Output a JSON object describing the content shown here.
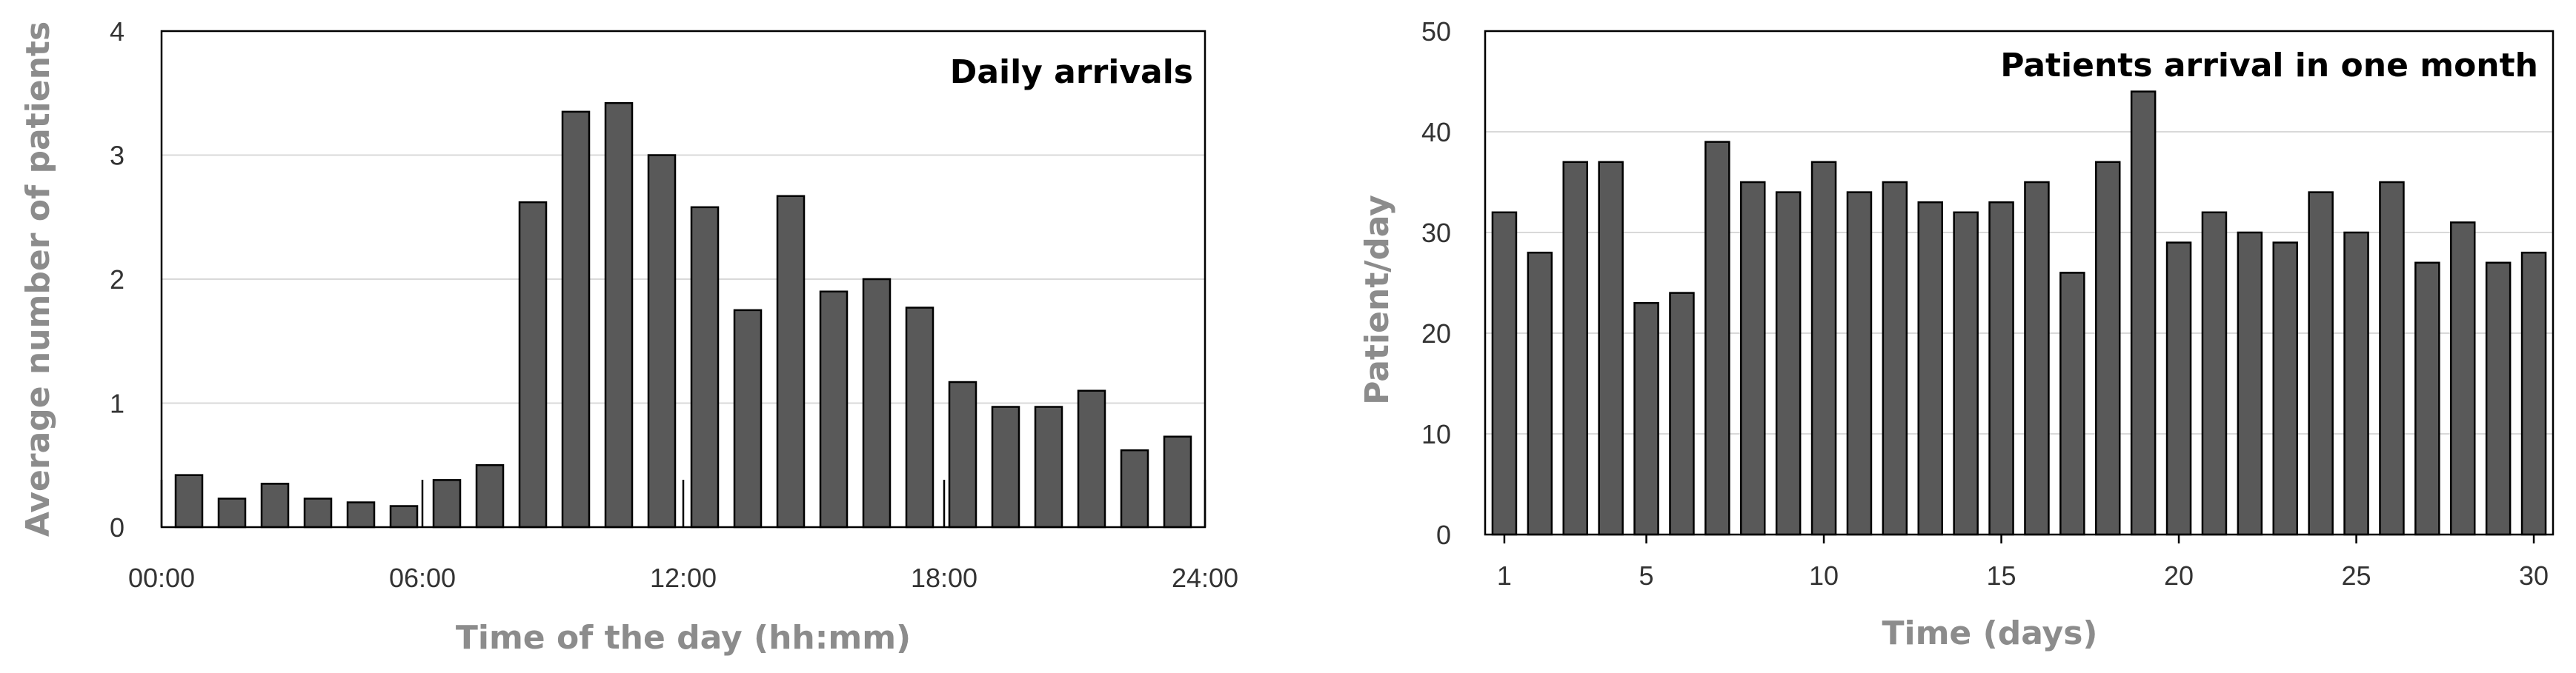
{
  "colors": {
    "bar_fill": "#595959",
    "bar_stroke": "#000000",
    "grid": "#d9d9d9",
    "axis_title": "#8c8c8c"
  },
  "chart_data": [
    {
      "type": "bar",
      "title": "Daily arrivals",
      "xlabel": "Time of the day (hh:mm)",
      "ylabel": "Average number of patients",
      "xticks": [
        "00:00",
        "06:00",
        "12:00",
        "18:00",
        "24:00"
      ],
      "yticks": [
        "0",
        "1",
        "2",
        "3",
        "4"
      ],
      "ylim": [
        0,
        4
      ],
      "grid": true,
      "values": [
        0.42,
        0.23,
        0.35,
        0.23,
        0.2,
        0.17,
        0.38,
        0.5,
        2.62,
        3.35,
        3.42,
        3.0,
        2.58,
        1.75,
        2.67,
        1.9,
        2.0,
        1.77,
        1.17,
        0.97,
        0.97,
        1.1,
        0.62,
        0.73
      ]
    },
    {
      "type": "bar",
      "title": "Patients arrival in one month",
      "xlabel": "Time (days)",
      "ylabel": "Patient/day",
      "xticks": [
        "1",
        "5",
        "10",
        "15",
        "20",
        "25",
        "30"
      ],
      "yticks": [
        "0",
        "10",
        "20",
        "30",
        "40",
        "50"
      ],
      "ylim": [
        0,
        50
      ],
      "grid": true,
      "values": [
        32,
        28,
        37,
        37,
        23,
        24,
        39,
        35,
        34,
        37,
        34,
        35,
        33,
        32,
        33,
        35,
        26,
        37,
        44,
        29,
        32,
        30,
        29,
        34,
        30,
        35,
        27,
        31,
        27,
        28
      ]
    }
  ]
}
